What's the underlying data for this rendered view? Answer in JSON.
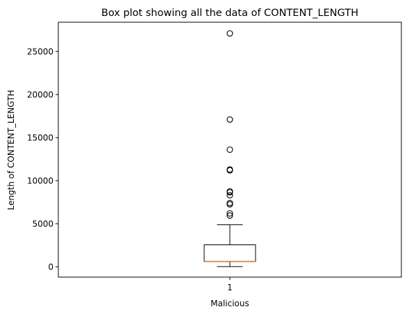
{
  "chart_data": {
    "type": "box",
    "title": "Box plot showing all the data of CONTENT_LENGTH",
    "xlabel": "Malicious",
    "ylabel": "Length of CONTENT_LENGTH",
    "categories": [
      "1"
    ],
    "ylim": [
      -1200,
      28400
    ],
    "yticks": [
      0,
      5000,
      10000,
      15000,
      20000,
      25000
    ],
    "ytick_labels": [
      "0",
      "5000",
      "10000",
      "15000",
      "20000",
      "25000"
    ],
    "grid": false,
    "box": {
      "whisker_low": 20,
      "q1": 600,
      "median": 620,
      "q3": 2550,
      "whisker_high": 4880
    },
    "outliers": [
      5950,
      6200,
      7250,
      7400,
      8300,
      8650,
      8750,
      11200,
      11300,
      13600,
      17100,
      27100
    ],
    "colors": {
      "box": "#000000",
      "median": "#ff7f0e",
      "outlier_edge": "#000000"
    }
  }
}
